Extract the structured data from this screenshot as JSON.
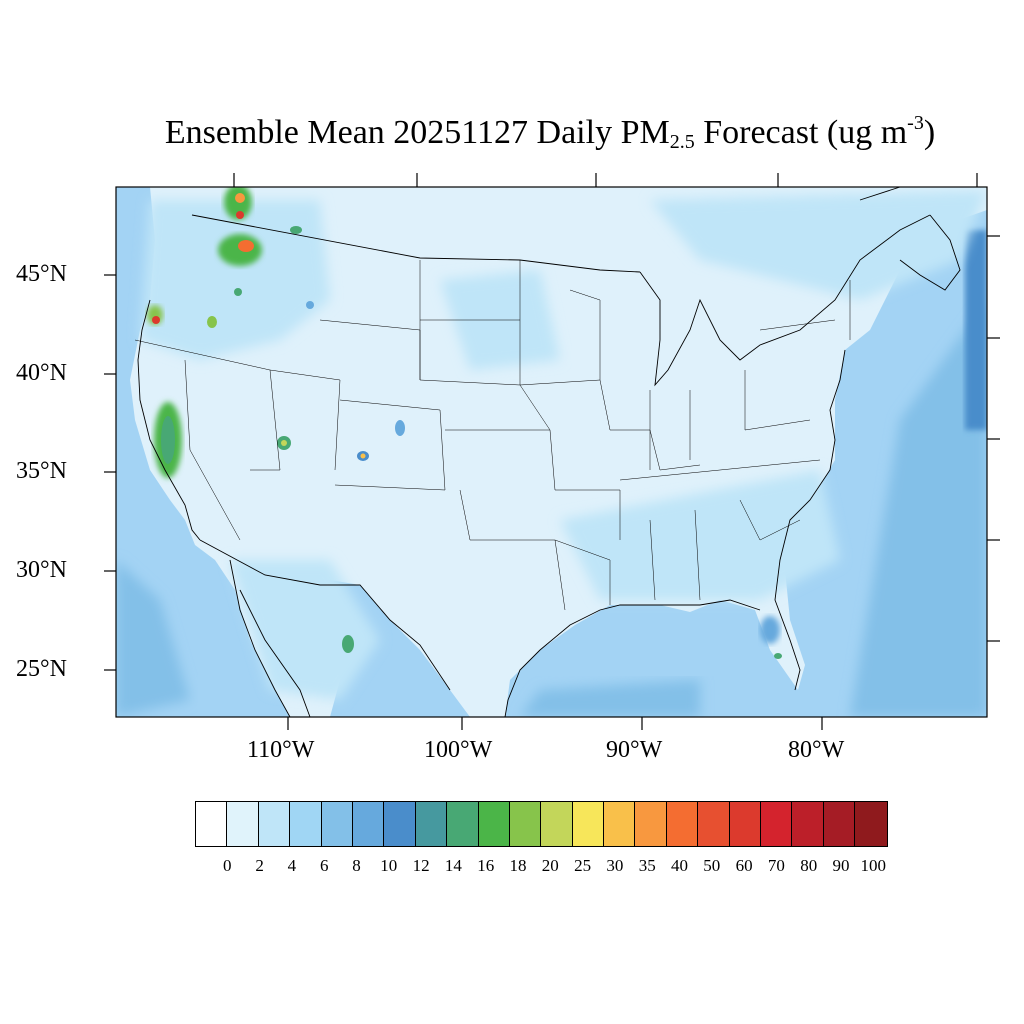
{
  "title": {
    "prefix": "Ensemble Mean 20251127 Daily PM",
    "subscript": "2.5",
    "middle": " Forecast (ug m",
    "superscript": "-3",
    "suffix": ")"
  },
  "map": {
    "lat_labels": [
      "45°N",
      "40°N",
      "35°N",
      "30°N",
      "25°N"
    ],
    "lon_labels": [
      "110°W",
      "100°W",
      "90°W",
      "80°W"
    ],
    "ocean_color": "#a3d3f4",
    "land_color": "#dff1fb"
  },
  "colorbar": {
    "colors": [
      "#ffffff",
      "#e0f3fb",
      "#bfe5f8",
      "#a0d6f4",
      "#83c0e8",
      "#66a9dd",
      "#4a8dcb",
      "#46999f",
      "#48a874",
      "#4bb548",
      "#87c44b",
      "#c3d65a",
      "#f7e65a",
      "#f9c04a",
      "#f8983f",
      "#f46d31",
      "#e75030",
      "#dc3a2d",
      "#d4232d",
      "#bc1f29",
      "#a51c25",
      "#8f1a1d"
    ],
    "ticks": [
      "0",
      "2",
      "4",
      "6",
      "8",
      "10",
      "12",
      "14",
      "16",
      "18",
      "20",
      "25",
      "30",
      "35",
      "40",
      "50",
      "60",
      "70",
      "80",
      "90",
      "100"
    ]
  }
}
